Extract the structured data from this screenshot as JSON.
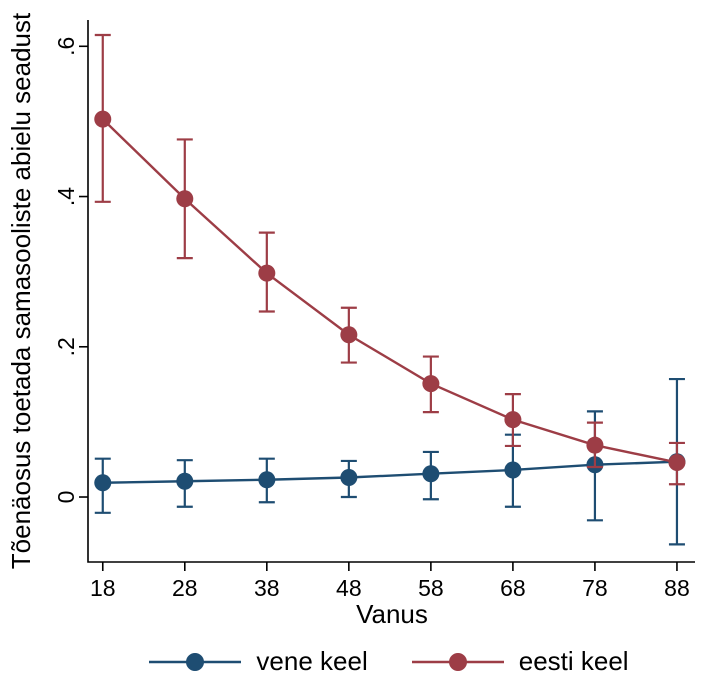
{
  "figure": {
    "background": "#FFFFFF"
  },
  "chart_data": {
    "type": "line",
    "title": "",
    "xlabel": "Vanus",
    "ylabel": "Tõenäosus toetada samasooliste abielu seadust",
    "grid": false,
    "legend_position": "bottom",
    "x": [
      18,
      28,
      38,
      48,
      58,
      68,
      78,
      88
    ],
    "xtick_labels": [
      "18",
      "28",
      "38",
      "48",
      "58",
      "68",
      "78",
      "88"
    ],
    "yticks": [
      0,
      0.2,
      0.4,
      0.6
    ],
    "ytick_labels": [
      "0",
      ".2",
      ".4",
      ".6"
    ],
    "xlim": [
      16.2,
      90.2
    ],
    "ylim": [
      -0.0865,
      0.635
    ],
    "marker": "circle",
    "series": [
      {
        "name": "vene keel",
        "color": "#1E4D72",
        "values": [
          0.019,
          0.021,
          0.023,
          0.026,
          0.031,
          0.036,
          0.043,
          0.047
        ],
        "ci_low": [
          -0.021,
          -0.013,
          -0.007,
          0.0,
          -0.003,
          -0.013,
          -0.031,
          -0.063
        ],
        "ci_high": [
          0.051,
          0.049,
          0.051,
          0.048,
          0.06,
          0.083,
          0.114,
          0.157
        ]
      },
      {
        "name": "eesti keel",
        "color": "#9D3D46",
        "values": [
          0.503,
          0.397,
          0.298,
          0.216,
          0.151,
          0.103,
          0.069,
          0.046
        ],
        "ci_low": [
          0.393,
          0.318,
          0.247,
          0.179,
          0.113,
          0.068,
          0.04,
          0.017
        ],
        "ci_high": [
          0.615,
          0.476,
          0.352,
          0.252,
          0.187,
          0.137,
          0.099,
          0.072
        ]
      }
    ]
  }
}
